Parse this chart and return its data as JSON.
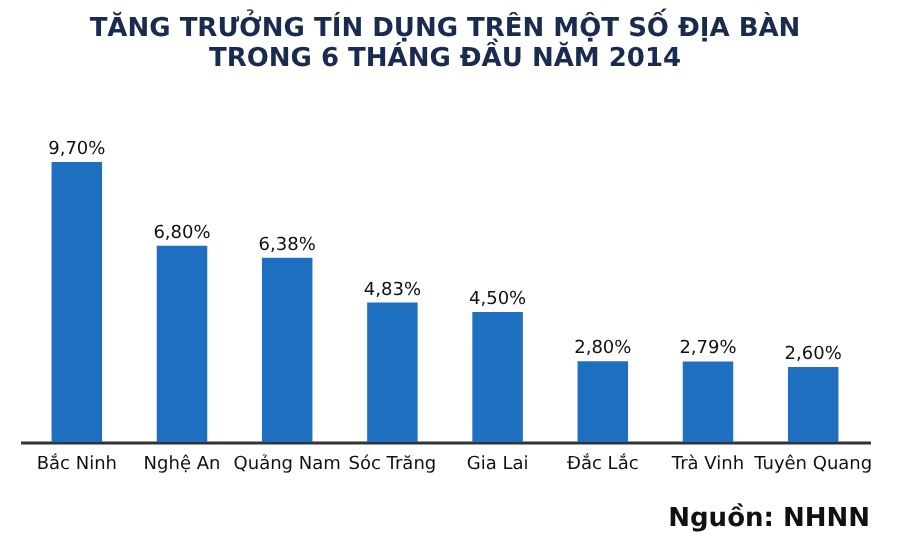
{
  "chart_data": {
    "type": "bar",
    "title": [
      "TĂNG TRƯỞNG TÍN DỤNG TRÊN MỘT SỐ ĐỊA BÀN",
      "TRONG 6 THÁNG ĐẦU NĂM 2014"
    ],
    "categories": [
      "Bắc Ninh",
      "Nghệ An",
      "Quảng Nam",
      "Sóc Trăng",
      "Gia Lai",
      "Đắc Lắc",
      "Trà Vinh",
      "Tuyên Quang"
    ],
    "values": [
      9.7,
      6.8,
      6.38,
      4.83,
      4.5,
      2.8,
      2.79,
      2.6
    ],
    "value_labels": [
      "9,70%",
      "6,80%",
      "6,38%",
      "4,83%",
      "4,50%",
      "2,80%",
      "2,79%",
      "2,60%"
    ],
    "color": "#1f6fc1",
    "tick_labels": "x",
    "grid": false,
    "annotations": [
      "Nguồn: NHNN"
    ]
  }
}
